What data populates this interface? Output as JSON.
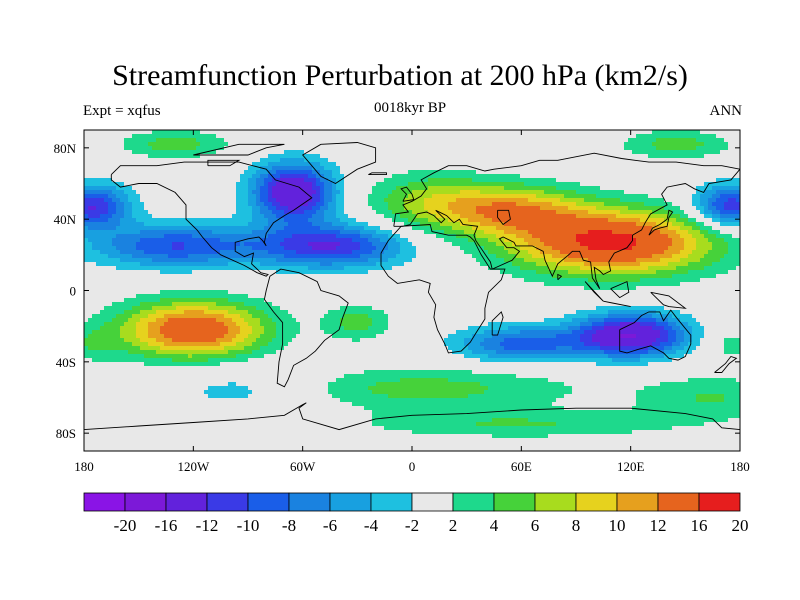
{
  "header": {
    "title": "Streamfunction Perturbation at 200 hPa (km2/s)",
    "left_string": "Expt = xqfus",
    "center_string": "0018kyr BP",
    "right_string": "ANN"
  },
  "chart_data": {
    "type": "heatmap",
    "title": "Streamfunction Perturbation at 200 hPa (km2/s)",
    "projection": "cylindrical equidistant",
    "xlim": [
      -180,
      180
    ],
    "ylim": [
      -90,
      90
    ],
    "x_ticks": [
      {
        "value": -180,
        "label": "180"
      },
      {
        "value": -120,
        "label": "120W"
      },
      {
        "value": -60,
        "label": "60W"
      },
      {
        "value": 0,
        "label": "0"
      },
      {
        "value": 60,
        "label": "60E"
      },
      {
        "value": 120,
        "label": "120E"
      },
      {
        "value": 180,
        "label": "180"
      }
    ],
    "y_ticks": [
      {
        "value": 80,
        "label": "80N"
      },
      {
        "value": 40,
        "label": "40N"
      },
      {
        "value": 0,
        "label": "0"
      },
      {
        "value": -40,
        "label": "40S"
      },
      {
        "value": -80,
        "label": "80S"
      }
    ],
    "contour_levels": [
      -20,
      -16,
      -12,
      -10,
      -8,
      -6,
      -4,
      -2,
      2,
      4,
      6,
      8,
      10,
      12,
      16,
      20
    ],
    "colorbar_labels": [
      "-20",
      "-16",
      "-12",
      "-10",
      "-8",
      "-6",
      "-4",
      "-2",
      "2",
      "4",
      "6",
      "8",
      "10",
      "12",
      "16",
      "20"
    ],
    "colors": [
      "#8a14e6",
      "#7c19d8",
      "#6222dc",
      "#3a3ae6",
      "#1a5ee8",
      "#1a82e0",
      "#18a0e0",
      "#1ec0e0",
      "#e8e8e8",
      "#1ed98c",
      "#46d23a",
      "#a8dc1e",
      "#e6d21e",
      "#e6a01e",
      "#e6641e",
      "#e61e1e"
    ],
    "field_features": [
      {
        "lon": 110,
        "lat": 27,
        "value": 17,
        "extent_lon": 55,
        "extent_lat": 18
      },
      {
        "lon": 55,
        "lat": 45,
        "value": 10,
        "extent_lon": 40,
        "extent_lat": 14
      },
      {
        "lon": 10,
        "lat": 50,
        "value": 6,
        "extent_lon": 35,
        "extent_lat": 16
      },
      {
        "lon": -120,
        "lat": -22,
        "value": 15,
        "extent_lon": 40,
        "extent_lat": 16
      },
      {
        "lon": -45,
        "lat": 25,
        "value": -12,
        "extent_lon": 40,
        "extent_lat": 12
      },
      {
        "lon": -130,
        "lat": 25,
        "value": -10,
        "extent_lon": 45,
        "extent_lat": 12
      },
      {
        "lon": -65,
        "lat": 55,
        "value": -16,
        "extent_lon": 22,
        "extent_lat": 16
      },
      {
        "lon": 120,
        "lat": -25,
        "value": -16,
        "extent_lon": 30,
        "extent_lat": 12
      },
      {
        "lon": 60,
        "lat": -30,
        "value": -9,
        "extent_lon": 35,
        "extent_lat": 10
      },
      {
        "lon": -175,
        "lat": 47,
        "value": -12,
        "extent_lon": 20,
        "extent_lat": 12
      },
      {
        "lon": 175,
        "lat": 47,
        "value": -12,
        "extent_lon": 20,
        "extent_lat": 12
      },
      {
        "lon": 0,
        "lat": -55,
        "value": 5,
        "extent_lon": 90,
        "extent_lat": 12
      },
      {
        "lon": -90,
        "lat": -55,
        "value": -4,
        "extent_lon": 50,
        "extent_lat": 14
      },
      {
        "lon": 165,
        "lat": -60,
        "value": 4,
        "extent_lon": 40,
        "extent_lat": 12
      },
      {
        "lon": -30,
        "lat": -18,
        "value": 5,
        "extent_lon": 18,
        "extent_lat": 10
      },
      {
        "lon": 60,
        "lat": -75,
        "value": 4,
        "extent_lon": 90,
        "extent_lat": 8
      },
      {
        "lon": 145,
        "lat": 82,
        "value": 5,
        "extent_lon": 30,
        "extent_lat": 8
      },
      {
        "lon": -130,
        "lat": 82,
        "value": 5,
        "extent_lon": 30,
        "extent_lat": 8
      },
      {
        "lon": -175,
        "lat": -30,
        "value": 3,
        "extent_lon": 15,
        "extent_lat": 10
      },
      {
        "lon": 175,
        "lat": -30,
        "value": 3,
        "extent_lon": 15,
        "extent_lat": 10
      }
    ],
    "grid": false,
    "legend": "bottom colorbar"
  }
}
